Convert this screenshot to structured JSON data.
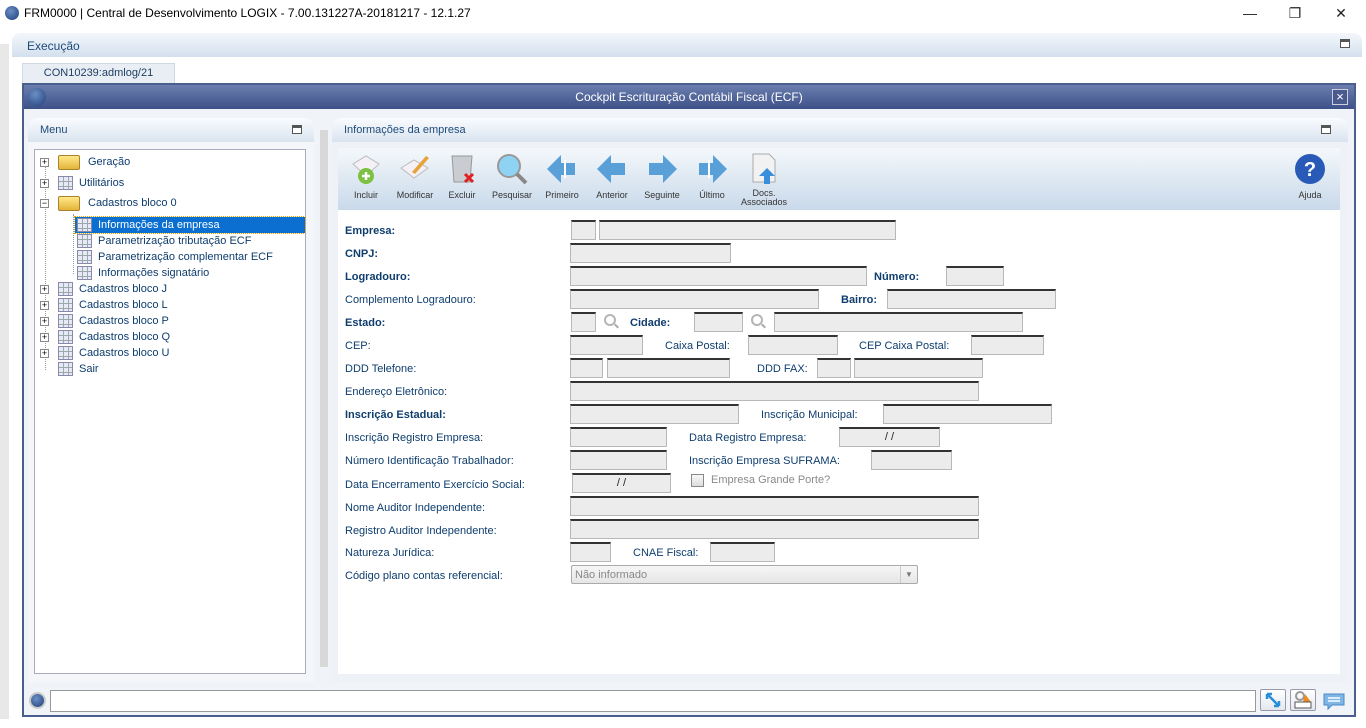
{
  "titlebar": {
    "title": "FRM0000 | Central de Desenvolvimento LOGIX  -  7.00.131227A-20181217  -  12.1.27",
    "minimize": "—",
    "maximize": "❐",
    "close": "✕"
  },
  "execucao": {
    "label": "Execução"
  },
  "tab": {
    "label": "CON10239:admlog/21"
  },
  "window": {
    "title": "Cockpit Escrituração Contábil Fiscal (ECF)",
    "close": "×"
  },
  "menu": {
    "title": "Menu",
    "items": [
      {
        "label": "Geração",
        "icon": "folder-icon",
        "expander": "+"
      },
      {
        "label": "Utilitários",
        "icon": "grid-icon",
        "expander": "+"
      },
      {
        "label": "Cadastros bloco 0",
        "icon": "folder-open-icon",
        "expander": "−"
      },
      {
        "label": "Informações da empresa",
        "icon": "grid-icon",
        "selected": true
      },
      {
        "label": "Parametrização tributação ECF",
        "icon": "grid-icon"
      },
      {
        "label": "Parametrização complementar ECF",
        "icon": "grid-icon"
      },
      {
        "label": "Informações signatário",
        "icon": "grid-icon"
      },
      {
        "label": "Cadastros bloco J",
        "icon": "grid-icon",
        "expander": "+"
      },
      {
        "label": "Cadastros bloco L",
        "icon": "grid-icon",
        "expander": "+"
      },
      {
        "label": "Cadastros bloco P",
        "icon": "grid-icon",
        "expander": "+"
      },
      {
        "label": "Cadastros bloco Q",
        "icon": "grid-icon",
        "expander": "+"
      },
      {
        "label": "Cadastros bloco U",
        "icon": "grid-icon",
        "expander": "+"
      },
      {
        "label": "Sair",
        "icon": "grid-icon"
      }
    ]
  },
  "main": {
    "title": "Informações da empresa",
    "toolbar": [
      {
        "label": "Incluir",
        "icon": "add-icon"
      },
      {
        "label": "Modificar",
        "icon": "edit-icon"
      },
      {
        "label": "Excluir",
        "icon": "trash-icon"
      },
      {
        "label": "Pesquisar",
        "icon": "search-icon"
      },
      {
        "label": "Primeiro",
        "icon": "first-icon"
      },
      {
        "label": "Anterior",
        "icon": "previous-icon"
      },
      {
        "label": "Seguinte",
        "icon": "next-icon"
      },
      {
        "label": "Último",
        "icon": "last-icon"
      },
      {
        "label": "Docs. Associados",
        "icon": "documents-icon"
      },
      {
        "label": "Ajuda",
        "icon": "help-icon"
      }
    ],
    "form": {
      "empresa": "Empresa:",
      "cnpj": "CNPJ:",
      "logradouro": "Logradouro:",
      "numero": "Número:",
      "complemento": "Complemento Logradouro:",
      "bairro": "Bairro:",
      "estado": "Estado:",
      "cidade": "Cidade:",
      "cep": "CEP:",
      "caixa_postal": "Caixa Postal:",
      "cep_caixa_postal": "CEP Caixa Postal:",
      "ddd_telefone": "DDD Telefone:",
      "ddd_fax": "DDD FAX:",
      "endereco_eletronico": "Endereço Eletrônico:",
      "inscricao_estadual": "Inscrição Estadual:",
      "inscricao_municipal": "Inscrição Municipal:",
      "inscricao_registro": "Inscrição Registro Empresa:",
      "data_registro": "Data Registro Empresa:",
      "data_registro_value": " / /",
      "numero_identificacao": "Número Identificação Trabalhador:",
      "inscricao_suframa": "Inscrição Empresa SUFRAMA:",
      "data_encerramento": "Data Encerramento Exercício Social:",
      "data_encerramento_value": "/ /",
      "grande_porte": "Empresa Grande Porte?",
      "grande_porte_checked": false,
      "nome_auditor": "Nome Auditor Independente:",
      "registro_auditor": "Registro Auditor Independente:",
      "natureza_juridica": "Natureza Jurídica:",
      "cnae_fiscal": "CNAE Fiscal:",
      "codigo_plano": "Código plano contas referencial:",
      "codigo_plano_value": "Não informado"
    }
  }
}
